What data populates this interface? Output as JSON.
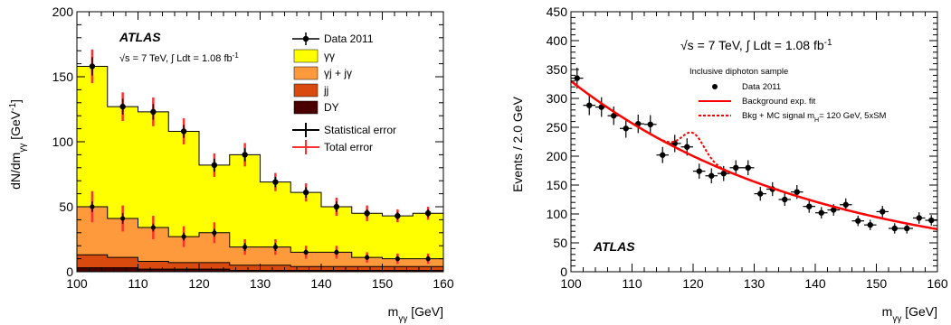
{
  "chart_data": [
    {
      "type": "area",
      "stacked": true,
      "ylabel": "dN/dm",
      "ylabel_sub": "γγ",
      "ylabel_unit": " [GeV",
      "ylabel_sup": "-1",
      "ylabel_close": "]",
      "xlabel": "m",
      "xlabel_sub": "γγ",
      "xlabel_unit": " [GeV]",
      "xlim": [
        100,
        160
      ],
      "ylim": [
        0,
        200
      ],
      "xticks": [
        "100",
        "110",
        "120",
        "130",
        "140",
        "150",
        "160"
      ],
      "yticks": [
        "0",
        "50",
        "100",
        "150",
        "200"
      ],
      "atlas_label": "ATLAS",
      "energy_label": "√s = 7 TeV, ∫ Ldt = 1.08 fb",
      "energy_sup": "-1",
      "bin_edges": [
        100,
        105,
        110,
        115,
        120,
        125,
        130,
        135,
        140,
        145,
        150,
        155,
        160
      ],
      "series": [
        {
          "name": "DY",
          "color": "#4a0000",
          "values": [
            3,
            3,
            2,
            2,
            2,
            1,
            1,
            1,
            1,
            1,
            1,
            1
          ]
        },
        {
          "name": "jj",
          "color": "#d94a0e",
          "values": [
            10,
            8,
            6,
            5,
            5,
            4,
            4,
            3,
            3,
            3,
            3,
            3
          ]
        },
        {
          "name": "γj + jγ",
          "color": "#ff9a3c",
          "values": [
            37,
            30,
            26,
            20,
            23,
            14,
            14,
            11,
            11,
            7,
            6,
            6
          ]
        },
        {
          "name": "γγ",
          "color": "#ffff00",
          "values": [
            108,
            86,
            89,
            81,
            52,
            71,
            50,
            46,
            35,
            34,
            33,
            35
          ]
        }
      ],
      "data": {
        "name": "Data 2011",
        "x": [
          102.5,
          107.5,
          112.5,
          117.5,
          122.5,
          127.5,
          132.5,
          137.5,
          142.5,
          147.5,
          152.5,
          157.5
        ],
        "y": [
          158,
          127,
          123,
          108,
          82,
          90,
          69,
          61,
          50,
          45,
          43,
          45
        ],
        "stat_err": [
          7,
          6,
          6,
          5,
          5,
          5,
          4,
          4,
          4,
          3,
          3,
          3
        ],
        "tot_err": [
          13,
          11,
          11,
          10,
          9,
          9,
          7,
          7,
          7,
          6,
          5,
          5
        ]
      },
      "components_data": {
        "y": [
          50,
          41,
          34,
          27,
          30,
          19,
          19,
          15,
          15,
          11,
          10,
          10
        ],
        "stat_err": [
          4,
          4,
          3,
          3,
          3,
          3,
          3,
          2,
          2,
          2,
          2,
          2
        ],
        "tot_err": [
          12,
          10,
          9,
          8,
          8,
          6,
          6,
          5,
          5,
          4,
          4,
          4
        ]
      },
      "legend": {
        "placement": "top-right",
        "entries": [
          "Data 2011",
          "γγ",
          "γj + jγ",
          "jj",
          "DY",
          "Statistical error",
          "Total error"
        ]
      },
      "colors": {
        "stat_error": "#000000",
        "total_error": "#ff3030"
      }
    },
    {
      "type": "scatter",
      "ylabel": "Events / 2.0 GeV",
      "xlabel": "m",
      "xlabel_sub": "γγ",
      "xlabel_unit": " [GeV]",
      "xlim": [
        100,
        160
      ],
      "ylim": [
        0,
        450
      ],
      "xticks": [
        "100",
        "110",
        "120",
        "130",
        "140",
        "150",
        "160"
      ],
      "yticks": [
        "0",
        "50",
        "100",
        "150",
        "200",
        "250",
        "300",
        "350",
        "400",
        "450"
      ],
      "atlas_label": "ATLAS",
      "energy_label": "√s = 7 TeV, ∫ Ldt = 1.08 fb",
      "energy_sup": "-1",
      "legend_title": "Inclusive diphoton sample",
      "legend": {
        "placement": "top-right",
        "entries": [
          "Data 2011",
          "Background exp. fit",
          "Bkg + MC signal m",
          "= 120 GeV, 5xSM"
        ],
        "signal_sub": "H"
      },
      "data": {
        "name": "Data 2011",
        "x": [
          101,
          103,
          105,
          107,
          109,
          111,
          113,
          115,
          117,
          119,
          121,
          123,
          125,
          127,
          129,
          131,
          133,
          135,
          137,
          139,
          141,
          143,
          145,
          147,
          149,
          151,
          153,
          155,
          157,
          159
        ],
        "y": [
          335,
          288,
          285,
          270,
          248,
          256,
          255,
          202,
          222,
          216,
          174,
          166,
          170,
          180,
          180,
          135,
          143,
          125,
          138,
          113,
          102,
          107,
          116,
          88,
          81,
          104,
          75,
          75,
          93,
          89
        ],
        "err": [
          18,
          17,
          17,
          16,
          16,
          16,
          16,
          14,
          15,
          15,
          13,
          13,
          13,
          13,
          13,
          12,
          12,
          11,
          12,
          11,
          10,
          10,
          11,
          9,
          9,
          10,
          9,
          9,
          10,
          9
        ]
      },
      "fit": {
        "name": "Background exp. fit",
        "a": 330,
        "b": 0.025,
        "color": "#ff0000"
      },
      "signal": {
        "name": "Bkg + MC signal",
        "mass": 120,
        "amplitude": 40,
        "sigma": 1.8,
        "color": "#ff0000"
      }
    }
  ]
}
